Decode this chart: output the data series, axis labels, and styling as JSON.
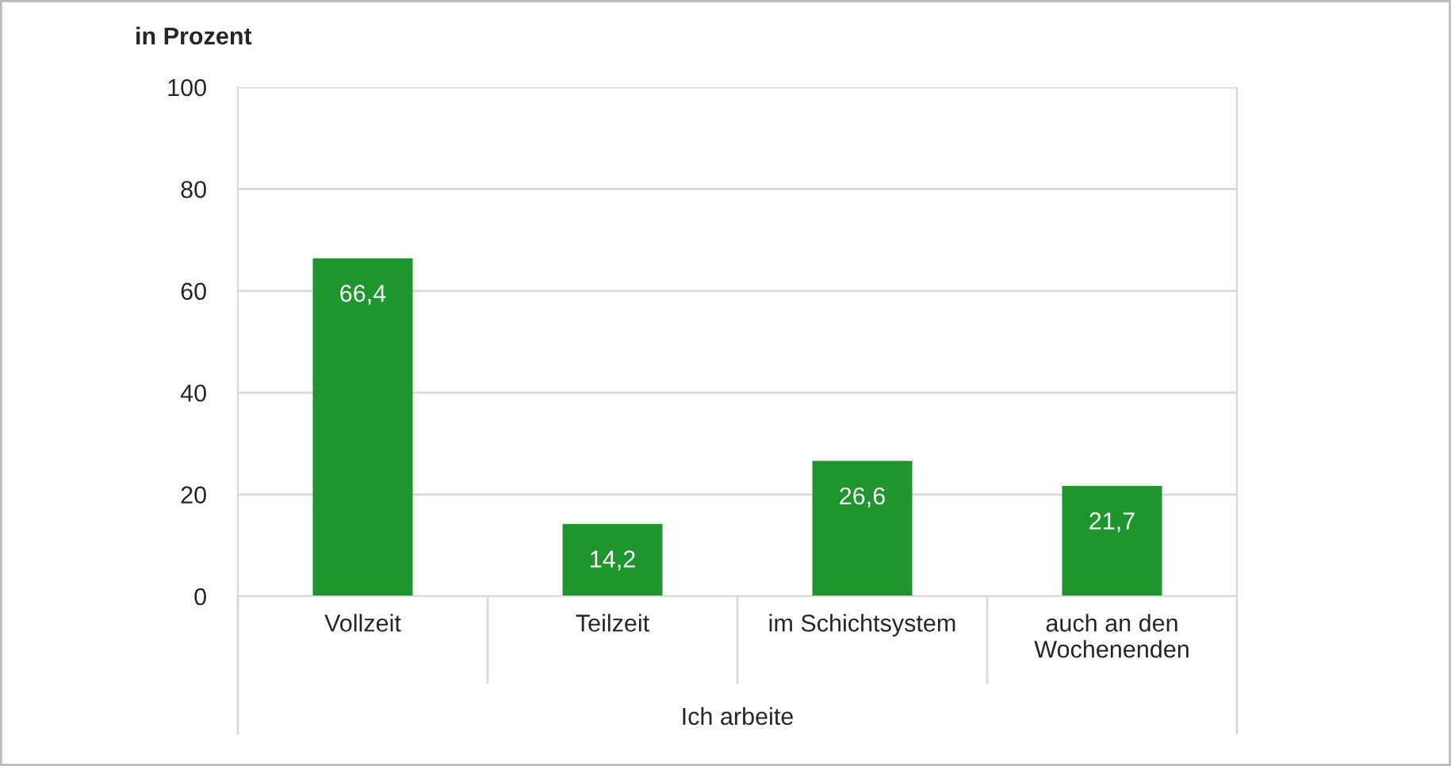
{
  "chart_data": {
    "type": "bar",
    "ylabel": "in Prozent",
    "xlabel": "Ich arbeite",
    "categories": [
      "Vollzeit",
      "Teilzeit",
      "im Schichtsystem",
      "auch an den\nWochenenden"
    ],
    "values": [
      66.4,
      14.2,
      26.6,
      21.7
    ],
    "value_labels": [
      "66,4",
      "14,2",
      "26,6",
      "21,7"
    ],
    "color": "#1e962d",
    "ylim": [
      0,
      100
    ],
    "yticks": [
      0,
      20,
      40,
      60,
      80,
      100
    ],
    "grid": "y"
  }
}
